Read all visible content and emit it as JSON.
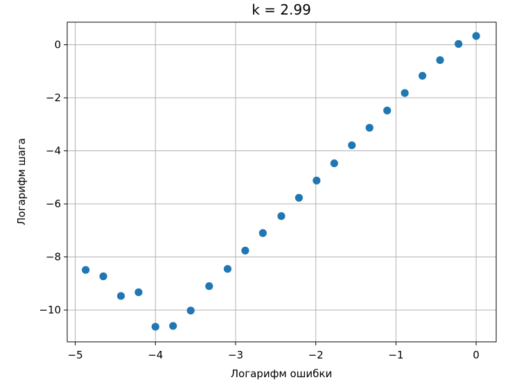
{
  "chart_data": {
    "type": "scatter",
    "title": "k = 2.99",
    "xlabel": "Логарифм ошибки",
    "ylabel": "Логарифм шага",
    "xlim": [
      -5.1,
      0.25
    ],
    "ylim": [
      -11.2,
      0.85
    ],
    "grid": true,
    "x_ticks": [
      -5,
      -4,
      -3,
      -2,
      -1,
      0
    ],
    "x_tick_labels": [
      "−5",
      "−4",
      "−3",
      "−2",
      "−1",
      "0"
    ],
    "y_ticks": [
      0,
      -2,
      -4,
      -6,
      -8,
      -10
    ],
    "y_tick_labels": [
      "0",
      "−2",
      "−4",
      "−6",
      "−8",
      "−10"
    ],
    "series": [
      {
        "color": "#1f77b4",
        "marker": "circle",
        "points": [
          {
            "x": -4.87,
            "y": -8.49
          },
          {
            "x": -4.65,
            "y": -8.73
          },
          {
            "x": -4.43,
            "y": -9.47
          },
          {
            "x": -4.21,
            "y": -9.33
          },
          {
            "x": -4.0,
            "y": -10.63
          },
          {
            "x": -3.78,
            "y": -10.6
          },
          {
            "x": -3.56,
            "y": -10.02
          },
          {
            "x": -3.33,
            "y": -9.1
          },
          {
            "x": -3.1,
            "y": -8.45
          },
          {
            "x": -2.88,
            "y": -7.76
          },
          {
            "x": -2.66,
            "y": -7.1
          },
          {
            "x": -2.43,
            "y": -6.46
          },
          {
            "x": -2.21,
            "y": -5.77
          },
          {
            "x": -1.99,
            "y": -5.12
          },
          {
            "x": -1.77,
            "y": -4.47
          },
          {
            "x": -1.55,
            "y": -3.79
          },
          {
            "x": -1.33,
            "y": -3.13
          },
          {
            "x": -1.11,
            "y": -2.48
          },
          {
            "x": -0.89,
            "y": -1.82
          },
          {
            "x": -0.67,
            "y": -1.17
          },
          {
            "x": -0.45,
            "y": -0.58
          },
          {
            "x": -0.22,
            "y": 0.03
          },
          {
            "x": 0.0,
            "y": 0.33
          }
        ]
      }
    ]
  }
}
